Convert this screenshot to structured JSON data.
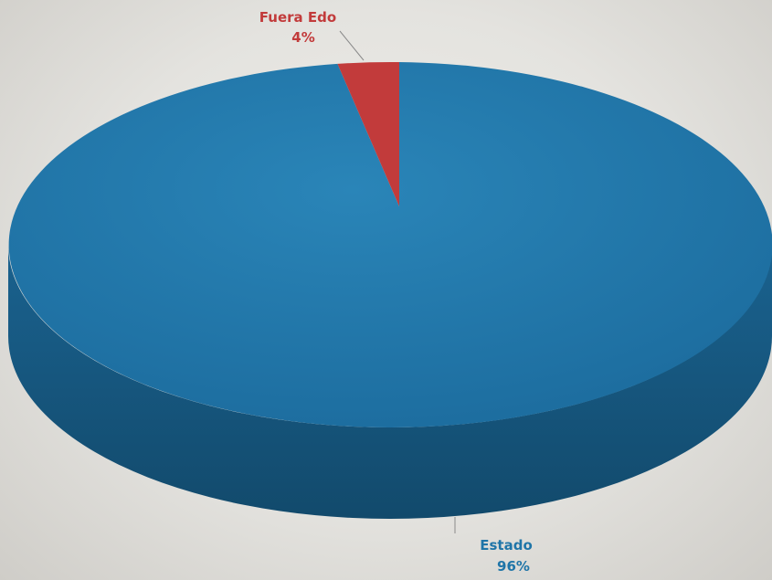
{
  "chart_data": {
    "type": "pie",
    "title": "",
    "categories": [
      "Fuera Edo",
      "Estado"
    ],
    "values": [
      4,
      96
    ],
    "value_labels": [
      "4%",
      "96%"
    ],
    "unit": "%",
    "three_d": true,
    "legend": "none",
    "colors": {
      "Fuera Edo": "#c23b3b",
      "Estado": "#1f75a8"
    }
  }
}
